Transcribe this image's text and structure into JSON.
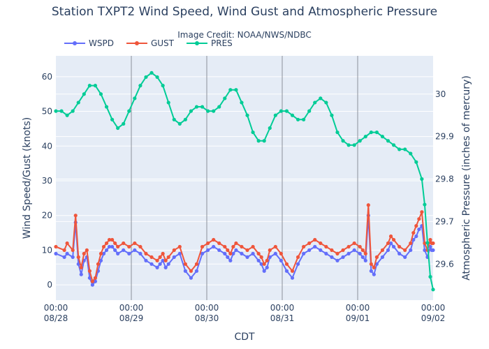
{
  "chart_data": {
    "type": "line",
    "title": "Station TXPT2 Wind Speed, Wind Gust and Atmospheric Pressure",
    "subtitle": "Image Credit: NOAA/NWS/NDBC",
    "xlabel": "CDT",
    "ylabel": "Wind Speed/Gust (knots)",
    "y2label": "Atmospheric Pressure (inches of mercury)",
    "ylim": [
      -4.4,
      66
    ],
    "y2lim": [
      29.515,
      30.09
    ],
    "xlim": [
      "08/28 00:00",
      "09/02 00:00"
    ],
    "x_ticks": [
      {
        "time": "00:00",
        "date": "08/28"
      },
      {
        "time": "00:00",
        "date": "08/29"
      },
      {
        "time": "00:00",
        "date": "08/30"
      },
      {
        "time": "00:00",
        "date": "08/31"
      },
      {
        "time": "00:00",
        "date": "09/01"
      },
      {
        "time": "00:00",
        "date": "09/02"
      }
    ],
    "y_ticks": [
      0,
      10,
      20,
      30,
      40,
      50,
      60
    ],
    "y2_ticks": [
      "29.6",
      "29.7",
      "29.8",
      "29.9",
      "30"
    ],
    "y2_tick_values": [
      29.6,
      29.7,
      29.8,
      29.9,
      30.0
    ],
    "x_unit": "hours since 08/28 00:00",
    "legend_position": "top-left",
    "grid": true,
    "colors": {
      "WSPD": "#636efa",
      "GUST": "#ef553b",
      "PRES": "#00cc96"
    },
    "series": [
      {
        "name": "WSPD",
        "axis": "left",
        "x": [
          0,
          3,
          4,
          6,
          7,
          8,
          9,
          10,
          11,
          12,
          13,
          14,
          15,
          16,
          17,
          18,
          19,
          20,
          21,
          22,
          24,
          26,
          28,
          30,
          32,
          34,
          36,
          37,
          38,
          39,
          40,
          42,
          44,
          46,
          48,
          50,
          52,
          54,
          56,
          58,
          60,
          61,
          62,
          63,
          64,
          66,
          68,
          70,
          72,
          73,
          74,
          75,
          76,
          78,
          80,
          82,
          84,
          86,
          88,
          90,
          92,
          94,
          96,
          98,
          100,
          102,
          104,
          106,
          108,
          109,
          110,
          111,
          112,
          113,
          114,
          116,
          118,
          119,
          120,
          122,
          124,
          126,
          127,
          128,
          129,
          130,
          131,
          132,
          133,
          133.5,
          134
        ],
        "values": [
          9,
          8,
          9,
          8,
          18,
          6,
          3,
          7,
          8,
          2,
          0,
          1,
          4,
          7,
          9,
          10,
          11,
          11,
          10,
          9,
          10,
          9,
          10,
          9,
          7,
          6,
          5,
          6,
          7,
          5,
          6,
          8,
          9,
          4,
          2,
          4,
          9,
          10,
          11,
          10,
          9,
          8,
          7,
          9,
          10,
          9,
          8,
          9,
          7,
          6,
          4,
          5,
          8,
          9,
          7,
          4,
          2,
          6,
          9,
          10,
          11,
          10,
          9,
          8,
          7,
          8,
          9,
          10,
          9,
          8,
          7,
          20,
          4,
          3,
          6,
          8,
          10,
          12,
          11,
          9,
          8,
          10,
          13,
          14,
          16,
          17,
          10,
          8,
          11,
          10,
          10
        ]
      },
      {
        "name": "GUST",
        "axis": "left",
        "x": [
          0,
          3,
          4,
          6,
          7,
          8,
          9,
          10,
          11,
          12,
          13,
          14,
          15,
          16,
          17,
          18,
          19,
          20,
          21,
          22,
          24,
          26,
          28,
          30,
          32,
          34,
          36,
          37,
          38,
          39,
          40,
          42,
          44,
          46,
          48,
          50,
          52,
          54,
          56,
          58,
          60,
          61,
          62,
          63,
          64,
          66,
          68,
          70,
          72,
          73,
          74,
          75,
          76,
          78,
          80,
          82,
          84,
          86,
          88,
          90,
          92,
          94,
          96,
          98,
          100,
          102,
          104,
          106,
          108,
          109,
          110,
          111,
          112,
          113,
          114,
          116,
          118,
          119,
          120,
          122,
          124,
          126,
          127,
          128,
          129,
          130,
          131,
          132,
          133,
          133.5,
          134
        ],
        "values": [
          11,
          10,
          12,
          10,
          20,
          8,
          5,
          9,
          10,
          4,
          1,
          2,
          6,
          9,
          11,
          12,
          13,
          13,
          12,
          11,
          12,
          11,
          12,
          11,
          9,
          8,
          7,
          8,
          9,
          7,
          8,
          10,
          11,
          6,
          4,
          6,
          11,
          12,
          13,
          12,
          11,
          10,
          9,
          11,
          12,
          11,
          10,
          11,
          9,
          8,
          6,
          7,
          10,
          11,
          9,
          6,
          4,
          8,
          11,
          12,
          13,
          12,
          11,
          10,
          9,
          10,
          11,
          12,
          11,
          10,
          9,
          23,
          6,
          5,
          8,
          10,
          12,
          14,
          13,
          11,
          10,
          12,
          15,
          17,
          19,
          21,
          12,
          10,
          13,
          12,
          12
        ]
      },
      {
        "name": "PRES",
        "axis": "right",
        "x": [
          0,
          2,
          4,
          6,
          8,
          10,
          12,
          14,
          16,
          18,
          20,
          22,
          24,
          26,
          28,
          30,
          32,
          34,
          36,
          38,
          40,
          42,
          44,
          46,
          48,
          50,
          52,
          54,
          56,
          58,
          60,
          62,
          64,
          66,
          68,
          70,
          72,
          74,
          76,
          78,
          80,
          82,
          84,
          86,
          88,
          90,
          92,
          94,
          96,
          98,
          100,
          102,
          104,
          106,
          108,
          110,
          112,
          114,
          116,
          118,
          120,
          122,
          124,
          126,
          128,
          130,
          131,
          132,
          133,
          134
        ],
        "values": [
          29.96,
          29.96,
          29.95,
          29.96,
          29.98,
          30.0,
          30.02,
          30.02,
          30.0,
          29.97,
          29.94,
          29.92,
          29.93,
          29.96,
          29.99,
          30.02,
          30.04,
          30.05,
          30.04,
          30.02,
          29.98,
          29.94,
          29.93,
          29.94,
          29.96,
          29.97,
          29.97,
          29.96,
          29.96,
          29.97,
          29.99,
          30.01,
          30.01,
          29.98,
          29.95,
          29.91,
          29.89,
          29.89,
          29.92,
          29.95,
          29.96,
          29.96,
          29.95,
          29.94,
          29.94,
          29.96,
          29.98,
          29.99,
          29.98,
          29.95,
          29.91,
          29.89,
          29.88,
          29.88,
          29.89,
          29.9,
          29.91,
          29.91,
          29.9,
          29.89,
          29.88,
          29.87,
          29.87,
          29.86,
          29.84,
          29.8,
          29.74,
          29.65,
          29.57,
          29.54
        ]
      }
    ]
  }
}
